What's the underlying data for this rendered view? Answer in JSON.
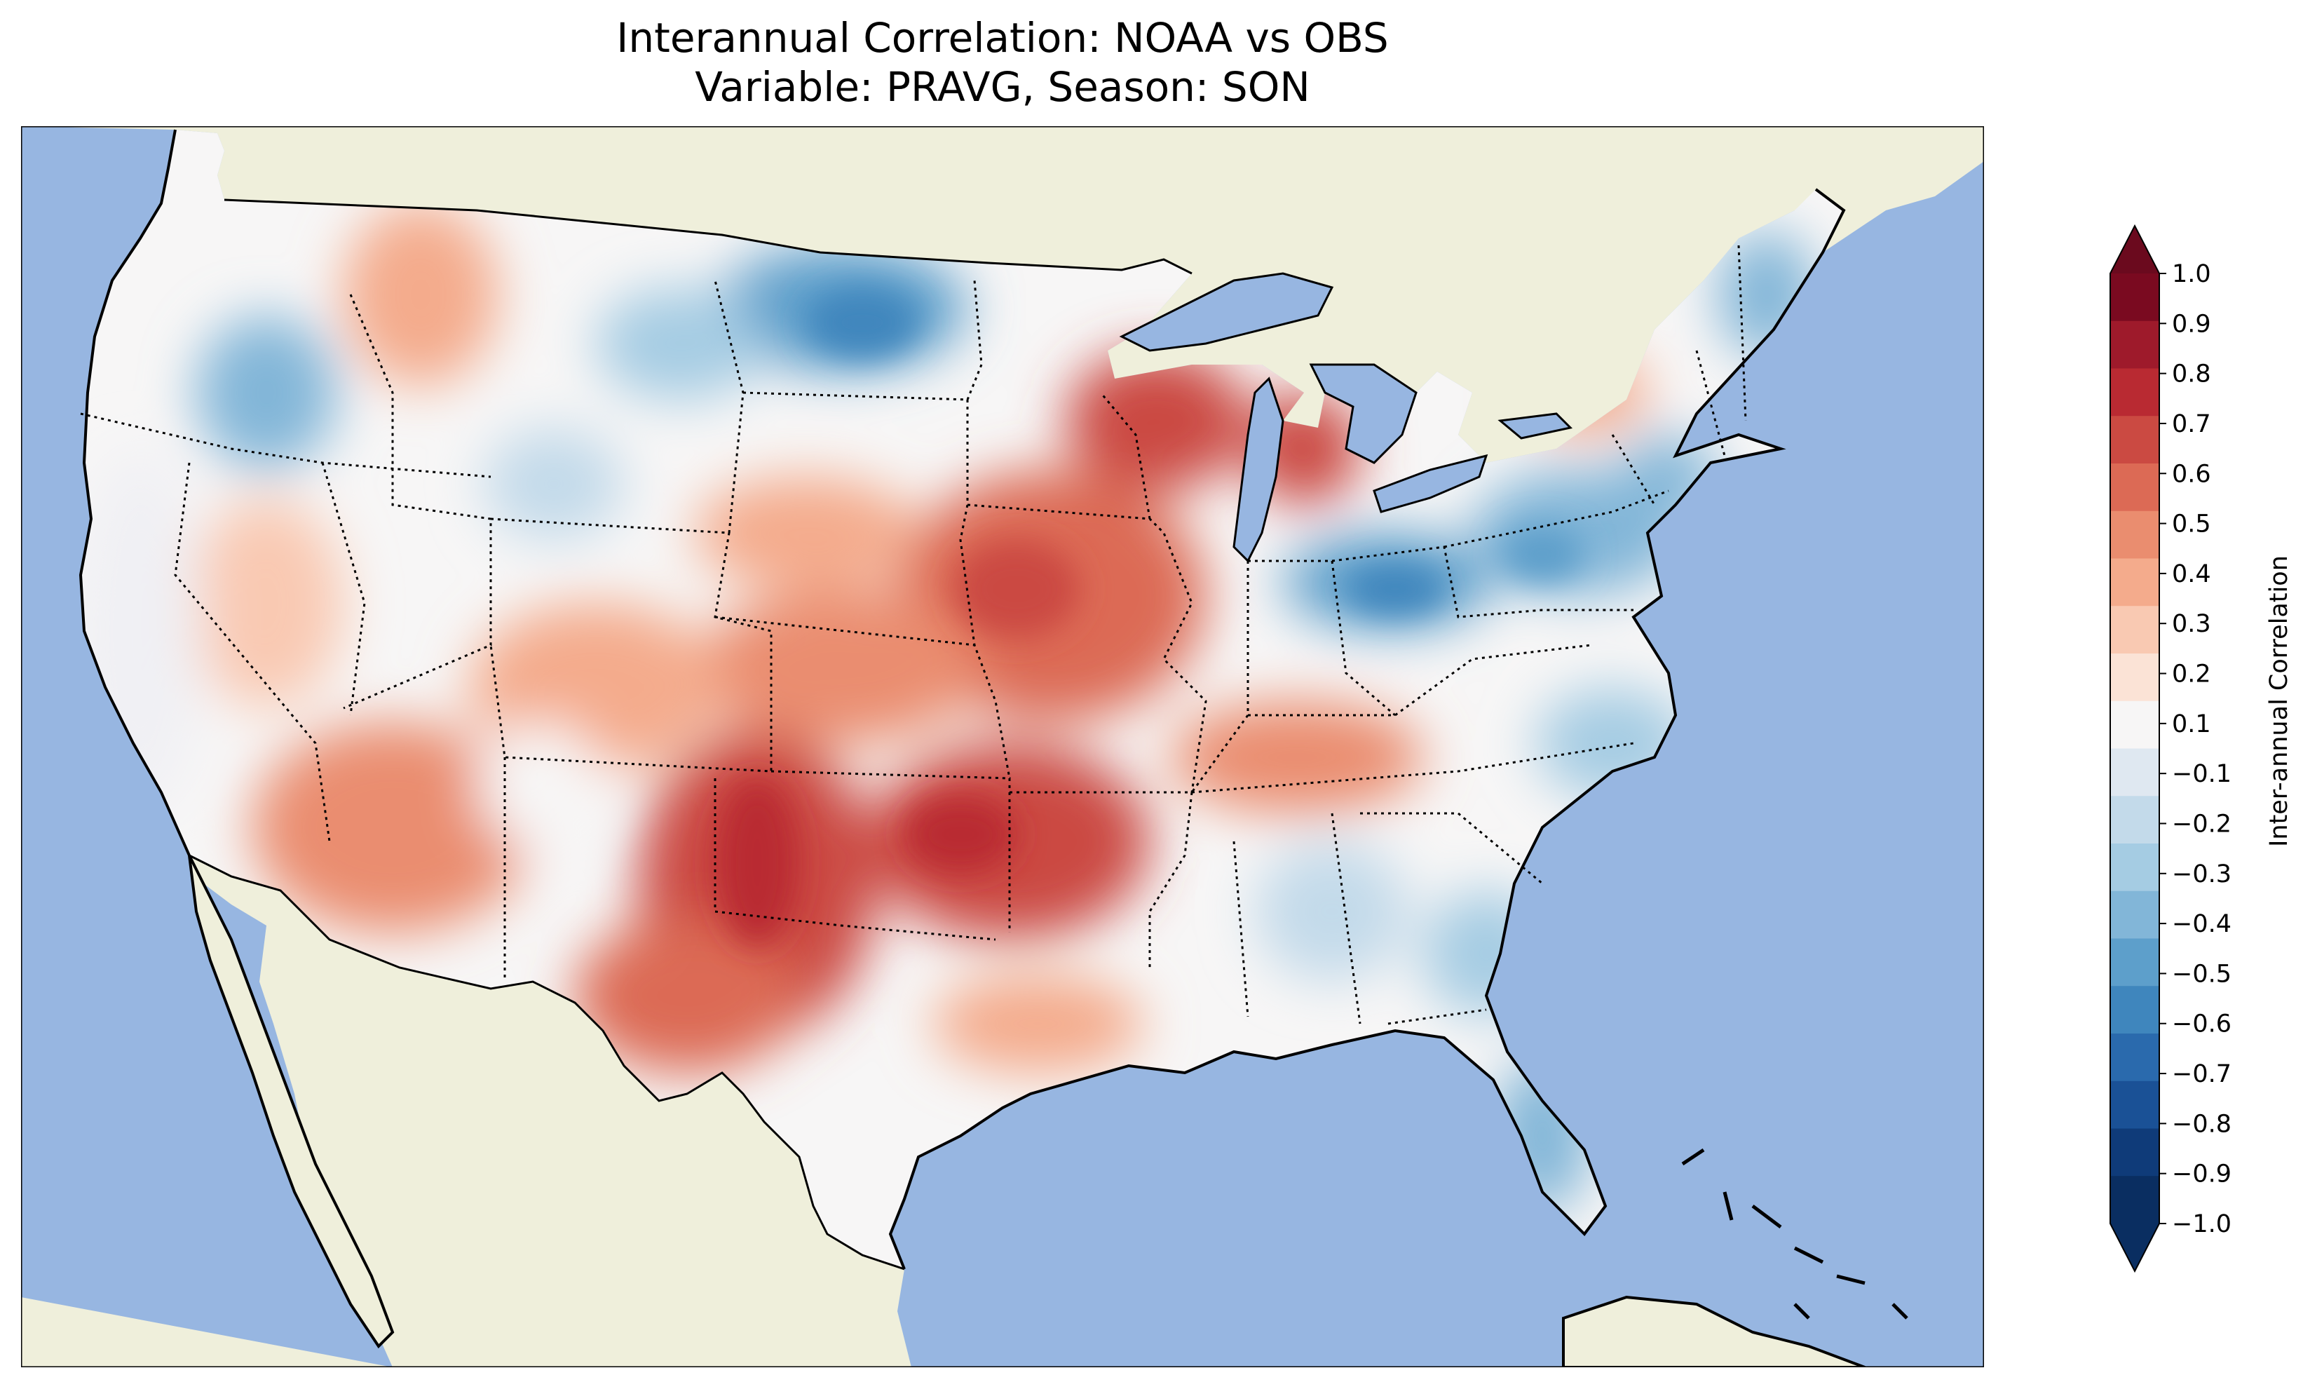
{
  "title": {
    "line1": "Interannual Correlation: NOAA vs OBS",
    "line2": "Variable: PRAVG, Season: SON"
  },
  "colors": {
    "ocean": "#97b6e1",
    "land": "#efefdb",
    "frame": "#000000"
  },
  "colorbar": {
    "label": "Inter-annual Correlation",
    "extend": "both",
    "ticks": [
      "1.0",
      "0.9",
      "0.8",
      "0.7",
      "0.6",
      "0.5",
      "0.4",
      "0.3",
      "0.2",
      "0.1",
      "−0.1",
      "−0.2",
      "−0.3",
      "−0.4",
      "−0.5",
      "−0.6",
      "−0.7",
      "−0.8",
      "−0.9",
      "−1.0"
    ],
    "colors_top_to_bottom": [
      "#7a0a20",
      "#9e1a2b",
      "#b92a32",
      "#cb4a42",
      "#dc6a55",
      "#ea8d6f",
      "#f4ab8c",
      "#f9c9b2",
      "#fbe3d6",
      "#f7f6f6",
      "#dfe8f1",
      "#c3daea",
      "#a5cce3",
      "#82b6d8",
      "#5d9fcb",
      "#3f86bd",
      "#2a6aad",
      "#1a5196",
      "#0f3b79",
      "#0a2e61"
    ],
    "under_color": "#0a2e61",
    "over_color": "#6b0a1e"
  },
  "map": {
    "variable": "PRAVG",
    "season": "SON",
    "region": "Contiguous United States",
    "regions": [
      {
        "name": "northern-plains-negative",
        "sign": "negative",
        "value": -0.6
      },
      {
        "name": "idaho-negative",
        "sign": "negative",
        "value": -0.5
      },
      {
        "name": "wyoming-negative",
        "sign": "negative",
        "value": -0.3
      },
      {
        "name": "ohio-valley-negative",
        "sign": "negative",
        "value": -0.6
      },
      {
        "name": "northeast-negative",
        "sign": "negative",
        "value": -0.5
      },
      {
        "name": "maine-negative",
        "sign": "negative",
        "value": -0.5
      },
      {
        "name": "florida-negative",
        "sign": "negative",
        "value": -0.4
      },
      {
        "name": "southeast-negative",
        "sign": "negative",
        "value": -0.4
      },
      {
        "name": "california-neutral",
        "sign": "neutral",
        "value": 0.0
      },
      {
        "name": "southwest-positive",
        "sign": "positive",
        "value": 0.5
      },
      {
        "name": "southern-plains-positive",
        "sign": "positive",
        "value": 0.7
      },
      {
        "name": "midwest-positive",
        "sign": "positive",
        "value": 0.6
      },
      {
        "name": "wisconsin-positive",
        "sign": "positive",
        "value": 0.7
      },
      {
        "name": "michigan-positive",
        "sign": "positive",
        "value": 0.7
      },
      {
        "name": "arkansas-positive",
        "sign": "positive",
        "value": 0.7
      },
      {
        "name": "montana-positive",
        "sign": "positive",
        "value": 0.4
      }
    ]
  }
}
